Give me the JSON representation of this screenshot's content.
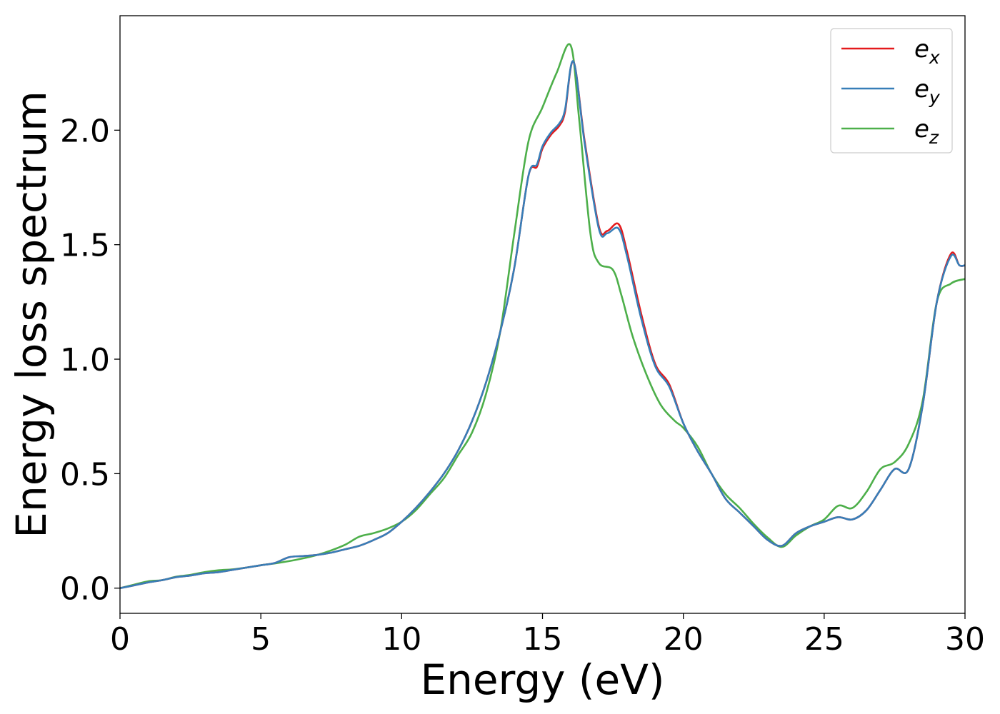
{
  "chart_data": {
    "type": "line",
    "title": "",
    "xlabel": "Energy (eV)",
    "ylabel": "Energy loss spectrum",
    "xlim": [
      0,
      30
    ],
    "ylim": [
      -0.11,
      2.5
    ],
    "xticks": [
      0,
      5,
      10,
      15,
      20,
      25,
      30
    ],
    "xtick_labels": [
      "0",
      "5",
      "10",
      "15",
      "20",
      "25",
      "30"
    ],
    "yticks": [
      0.0,
      0.5,
      1.0,
      1.5,
      2.0
    ],
    "ytick_labels": [
      "0.0",
      "0.5",
      "1.0",
      "1.5",
      "2.0"
    ],
    "grid": false,
    "legend_position": "top-right",
    "series": [
      {
        "name": "e",
        "subscript": "x",
        "color": "#e41a1c",
        "x": [
          0,
          0.5,
          1,
          1.5,
          2,
          2.5,
          3,
          3.5,
          4,
          4.5,
          5,
          5.5,
          6,
          6.5,
          7,
          7.5,
          8,
          8.5,
          9,
          9.5,
          10,
          10.5,
          11,
          11.5,
          12,
          12.5,
          13,
          13.5,
          14,
          14.5,
          14.8,
          15,
          15.3,
          15.6,
          15.8,
          16.1,
          16.5,
          17,
          17.3,
          17.7,
          18,
          18.5,
          19,
          19.5,
          20,
          20.5,
          21,
          21.5,
          22,
          22.5,
          23,
          23.5,
          24,
          24.5,
          25,
          25.5,
          26,
          26.5,
          27,
          27.5,
          28,
          28.5,
          29,
          29.5,
          29.8,
          30
        ],
        "values": [
          0.0,
          0.012,
          0.025,
          0.035,
          0.048,
          0.055,
          0.065,
          0.07,
          0.08,
          0.09,
          0.1,
          0.11,
          0.135,
          0.14,
          0.145,
          0.155,
          0.17,
          0.185,
          0.21,
          0.24,
          0.29,
          0.35,
          0.42,
          0.5,
          0.6,
          0.73,
          0.9,
          1.12,
          1.4,
          1.8,
          1.84,
          1.92,
          1.98,
          2.02,
          2.08,
          2.3,
          1.95,
          1.58,
          1.56,
          1.59,
          1.47,
          1.2,
          0.98,
          0.89,
          0.72,
          0.6,
          0.5,
          0.39,
          0.33,
          0.27,
          0.21,
          0.185,
          0.24,
          0.27,
          0.29,
          0.31,
          0.3,
          0.34,
          0.43,
          0.52,
          0.52,
          0.8,
          1.25,
          1.46,
          1.41,
          1.41
        ]
      },
      {
        "name": "e",
        "subscript": "y",
        "color": "#377eb8",
        "x": [
          0,
          0.5,
          1,
          1.5,
          2,
          2.5,
          3,
          3.5,
          4,
          4.5,
          5,
          5.5,
          6,
          6.5,
          7,
          7.5,
          8,
          8.5,
          9,
          9.5,
          10,
          10.5,
          11,
          11.5,
          12,
          12.5,
          13,
          13.5,
          14,
          14.5,
          14.8,
          15,
          15.3,
          15.6,
          15.8,
          16.1,
          16.5,
          17,
          17.3,
          17.7,
          18,
          18.5,
          19,
          19.5,
          20,
          20.5,
          21,
          21.5,
          22,
          22.5,
          23,
          23.5,
          24,
          24.5,
          25,
          25.5,
          26,
          26.5,
          27,
          27.5,
          28,
          28.5,
          29,
          29.5,
          29.8,
          30
        ],
        "values": [
          0.0,
          0.012,
          0.025,
          0.035,
          0.048,
          0.055,
          0.065,
          0.07,
          0.08,
          0.09,
          0.1,
          0.11,
          0.135,
          0.14,
          0.145,
          0.155,
          0.17,
          0.185,
          0.21,
          0.24,
          0.29,
          0.35,
          0.42,
          0.5,
          0.6,
          0.73,
          0.9,
          1.12,
          1.4,
          1.8,
          1.85,
          1.93,
          1.99,
          2.03,
          2.09,
          2.3,
          1.94,
          1.57,
          1.55,
          1.57,
          1.45,
          1.18,
          0.97,
          0.88,
          0.72,
          0.6,
          0.5,
          0.39,
          0.33,
          0.27,
          0.21,
          0.185,
          0.24,
          0.27,
          0.29,
          0.31,
          0.3,
          0.34,
          0.43,
          0.52,
          0.52,
          0.8,
          1.25,
          1.45,
          1.41,
          1.41
        ]
      },
      {
        "name": "e",
        "subscript": "z",
        "color": "#4daf4a",
        "x": [
          0,
          0.5,
          1,
          1.5,
          2,
          2.5,
          3,
          3.5,
          4,
          4.5,
          5,
          5.5,
          6,
          6.5,
          7,
          7.5,
          8,
          8.5,
          9,
          9.5,
          10,
          10.5,
          11,
          11.5,
          12,
          12.5,
          13,
          13.5,
          14,
          14.5,
          15,
          15.5,
          16,
          16.3,
          16.7,
          17,
          17.5,
          17.8,
          18.2,
          18.7,
          19.2,
          19.7,
          20,
          20.5,
          21,
          21.5,
          22,
          22.5,
          23,
          23.5,
          24,
          24.5,
          25,
          25.5,
          26,
          26.5,
          27,
          27.5,
          28,
          28.5,
          29,
          29.5,
          30
        ],
        "values": [
          0.0,
          0.015,
          0.03,
          0.035,
          0.05,
          0.058,
          0.07,
          0.078,
          0.082,
          0.09,
          0.1,
          0.108,
          0.118,
          0.13,
          0.145,
          0.165,
          0.19,
          0.225,
          0.24,
          0.26,
          0.29,
          0.34,
          0.41,
          0.48,
          0.58,
          0.68,
          0.85,
          1.12,
          1.55,
          1.95,
          2.1,
          2.25,
          2.37,
          2.05,
          1.55,
          1.42,
          1.39,
          1.28,
          1.1,
          0.93,
          0.8,
          0.73,
          0.7,
          0.62,
          0.5,
          0.41,
          0.35,
          0.28,
          0.22,
          0.18,
          0.23,
          0.27,
          0.3,
          0.36,
          0.35,
          0.42,
          0.52,
          0.55,
          0.63,
          0.82,
          1.25,
          1.33,
          1.35
        ]
      }
    ]
  }
}
